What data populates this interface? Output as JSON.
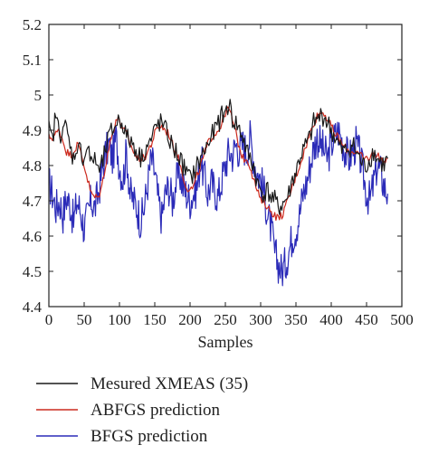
{
  "chart_data": {
    "type": "line",
    "title": "",
    "xlabel": "Samples",
    "ylabel": "",
    "xlim": [
      0,
      500
    ],
    "ylim": [
      4.4,
      5.2
    ],
    "x_ticks": [
      0,
      50,
      100,
      150,
      200,
      250,
      300,
      350,
      400,
      450,
      500
    ],
    "y_ticks": [
      4.4,
      4.5,
      4.6,
      4.7,
      4.8,
      4.9,
      5.0,
      5.1,
      5.2
    ],
    "y_tick_labels": [
      "4.4",
      "4.5",
      "4.6",
      "4.7",
      "4.8",
      "4.9",
      "5",
      "5.1",
      "5.2"
    ],
    "grid": false,
    "legend_placement": "below",
    "x_step": 5,
    "series": [
      {
        "name": "BFGS prediction",
        "color": "#2b2bb8",
        "values": [
          4.75,
          4.72,
          4.68,
          4.7,
          4.66,
          4.71,
          4.69,
          4.64,
          4.7,
          4.67,
          4.62,
          4.66,
          4.7,
          4.68,
          4.72,
          4.78,
          4.83,
          4.86,
          4.82,
          4.88,
          4.8,
          4.76,
          4.84,
          4.72,
          4.7,
          4.68,
          4.64,
          4.68,
          4.75,
          4.82,
          4.78,
          4.7,
          4.65,
          4.72,
          4.74,
          4.7,
          4.75,
          4.78,
          4.74,
          4.72,
          4.7,
          4.72,
          4.74,
          4.82,
          4.77,
          4.72,
          4.75,
          4.73,
          4.71,
          4.76,
          4.8,
          4.84,
          4.83,
          4.86,
          4.84,
          4.86,
          4.84,
          4.88,
          4.82,
          4.78,
          4.76,
          4.72,
          4.66,
          4.62,
          4.55,
          4.52,
          4.5,
          4.52,
          4.56,
          4.6,
          4.62,
          4.66,
          4.72,
          4.75,
          4.8,
          4.85,
          4.88,
          4.86,
          4.84,
          4.82,
          4.86,
          4.88,
          4.9,
          4.87,
          4.84,
          4.82,
          4.84,
          4.86,
          4.83,
          4.78,
          4.72,
          4.7,
          4.75,
          4.8,
          4.78,
          4.74,
          4.72
        ]
      },
      {
        "name": "ABFGS prediction",
        "color": "#cc2a1e",
        "values": [
          4.88,
          4.88,
          4.89,
          4.9,
          4.87,
          4.84,
          4.83,
          4.84,
          4.86,
          4.84,
          4.8,
          4.76,
          4.72,
          4.71,
          4.71,
          4.74,
          4.8,
          4.85,
          4.89,
          4.93,
          4.93,
          4.9,
          4.89,
          4.86,
          4.84,
          4.82,
          4.82,
          4.82,
          4.84,
          4.86,
          4.89,
          4.91,
          4.91,
          4.9,
          4.89,
          4.86,
          4.84,
          4.81,
          4.77,
          4.74,
          4.73,
          4.74,
          4.77,
          4.8,
          4.83,
          4.86,
          4.88,
          4.89,
          4.9,
          4.92,
          4.95,
          4.96,
          4.93,
          4.89,
          4.85,
          4.82,
          4.82,
          4.8,
          4.76,
          4.73,
          4.7,
          4.7,
          4.68,
          4.67,
          4.66,
          4.65,
          4.66,
          4.68,
          4.71,
          4.74,
          4.77,
          4.8,
          4.83,
          4.86,
          4.89,
          4.92,
          4.94,
          4.95,
          4.95,
          4.93,
          4.91,
          4.89,
          4.88,
          4.86,
          4.85,
          4.84,
          4.84,
          4.84,
          4.83,
          4.82,
          4.82,
          4.82,
          4.84,
          4.83,
          4.82,
          4.81,
          4.82
        ]
      },
      {
        "name": "Mesured XMEAS (35)",
        "color": "#1a1a1a",
        "values": [
          4.9,
          4.87,
          4.95,
          4.88,
          4.92,
          4.9,
          4.85,
          4.82,
          4.86,
          4.84,
          4.82,
          4.86,
          4.8,
          4.83,
          4.78,
          4.8,
          4.84,
          4.88,
          4.9,
          4.92,
          4.93,
          4.92,
          4.88,
          4.87,
          4.86,
          4.84,
          4.82,
          4.84,
          4.86,
          4.87,
          4.9,
          4.92,
          4.92,
          4.9,
          4.88,
          4.85,
          4.84,
          4.82,
          4.8,
          4.78,
          4.76,
          4.78,
          4.8,
          4.82,
          4.84,
          4.86,
          4.88,
          4.9,
          4.92,
          4.94,
          4.95,
          4.98,
          4.93,
          4.92,
          4.9,
          4.88,
          4.84,
          4.82,
          4.8,
          4.75,
          4.73,
          4.72,
          4.73,
          4.71,
          4.7,
          4.68,
          4.69,
          4.7,
          4.72,
          4.76,
          4.78,
          4.82,
          4.84,
          4.86,
          4.88,
          4.92,
          4.93,
          4.94,
          4.94,
          4.92,
          4.9,
          4.88,
          4.86,
          4.84,
          4.84,
          4.85,
          4.86,
          4.84,
          4.82,
          4.8,
          4.8,
          4.82,
          4.84,
          4.82,
          4.81,
          4.8,
          4.82
        ]
      }
    ]
  },
  "legend": {
    "items": [
      {
        "label": "Mesured XMEAS (35)",
        "color": "#1a1a1a"
      },
      {
        "label": "ABFGS prediction",
        "color": "#cc2a1e"
      },
      {
        "label": "BFGS prediction",
        "color": "#2b2bb8"
      }
    ]
  }
}
